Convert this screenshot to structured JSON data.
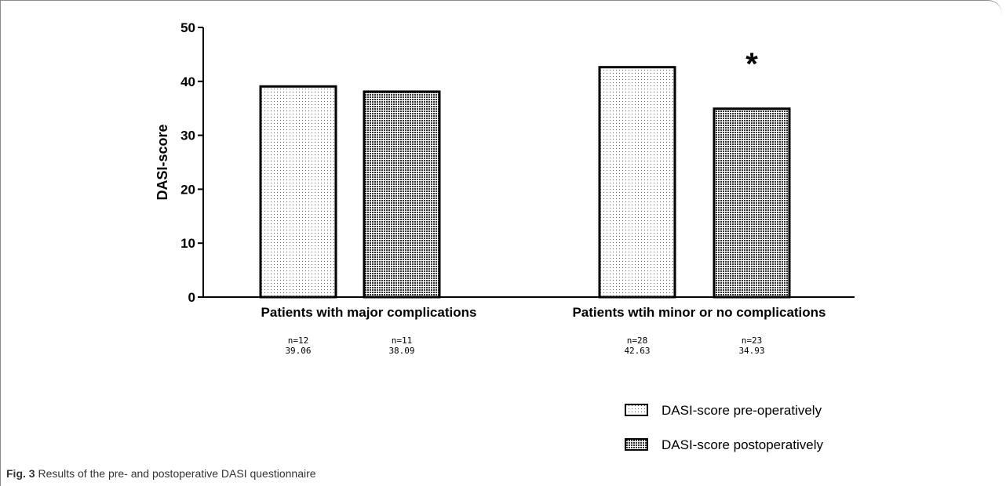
{
  "chart_data": {
    "type": "bar",
    "ylabel": "DASI-score",
    "ylim": [
      0,
      50
    ],
    "yticks": [
      "0",
      "10",
      "20",
      "30",
      "40",
      "50"
    ],
    "categories": [
      "Patients with major complications",
      "Patients wtih minor or no complications"
    ],
    "series": [
      {
        "name": "DASI-score pre-operatively",
        "values": [
          39.06,
          42.63
        ],
        "n_labels": [
          "n=12",
          "n=28"
        ],
        "value_labels": [
          "39.06",
          "42.63"
        ],
        "pattern": "light-dots"
      },
      {
        "name": "DASI-score postoperatively",
        "values": [
          38.09,
          34.93
        ],
        "n_labels": [
          "n=11",
          "n=23"
        ],
        "value_labels": [
          "38.09",
          "34.93"
        ],
        "pattern": "dense-dots"
      }
    ],
    "annotation": "*",
    "legend_position": "bottom-right"
  },
  "caption": {
    "label": "Fig. 3",
    "text": " Results of the pre- and postoperative DASI questionnaire"
  }
}
